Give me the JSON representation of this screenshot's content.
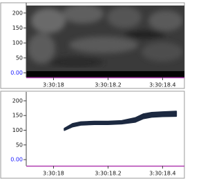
{
  "chart_data": [
    {
      "type": "spectrogram",
      "xlim": [
        17.9,
        18.48
      ],
      "xticks": [
        {
          "value": 18.0,
          "label": "3:30:18"
        },
        {
          "value": 18.2,
          "label": "3:30:18.2"
        },
        {
          "value": 18.4,
          "label": "3:30:18.4"
        }
      ],
      "ylim": [
        -15,
        225
      ],
      "yticks": [
        {
          "value": 0,
          "label": "0.00"
        },
        50,
        100,
        150,
        200
      ]
    },
    {
      "type": "band",
      "xlim": [
        17.9,
        18.48
      ],
      "xticks": [
        {
          "value": 18.0,
          "label": "3:30:18"
        },
        {
          "value": 18.2,
          "label": "3:30:18.2"
        },
        {
          "value": 18.4,
          "label": "3:30:18.4"
        }
      ],
      "ylim": [
        -21,
        221
      ],
      "yticks": [
        {
          "value": 0,
          "label": "0.00"
        },
        50,
        100,
        150,
        200
      ],
      "color": "#1c2940",
      "x": [
        18.04,
        18.07,
        18.1,
        18.15,
        18.2,
        18.25,
        18.3,
        18.33,
        18.36,
        18.4,
        18.45
      ],
      "lower": [
        100,
        112,
        118,
        120,
        120,
        122,
        128,
        140,
        145,
        147,
        148
      ],
      "upper": [
        106,
        122,
        128,
        130,
        130,
        132,
        142,
        155,
        160,
        162,
        164
      ]
    }
  ]
}
